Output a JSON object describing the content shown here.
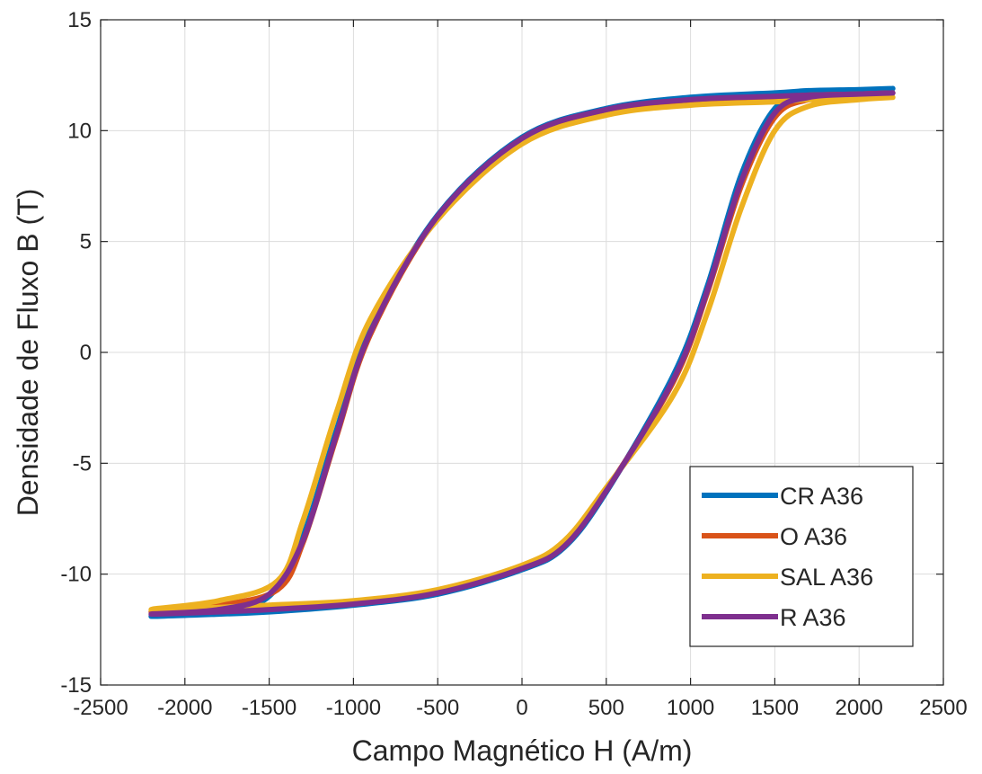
{
  "chart_data": {
    "type": "line",
    "title": "",
    "xlabel": "Campo Magnético H (A/m)",
    "ylabel": "Densidade de Fluxo B (T)",
    "xlim": [
      -2500,
      2500
    ],
    "ylim": [
      -15,
      15
    ],
    "x_ticks": [
      -2500,
      -2000,
      -1500,
      -1000,
      -500,
      0,
      500,
      1000,
      1500,
      2000,
      2500
    ],
    "y_ticks": [
      -15,
      -10,
      -5,
      0,
      5,
      10,
      15
    ],
    "x_tick_labels": [
      "-2500",
      "-2000",
      "-1500",
      "-1000",
      "-500",
      "0",
      "500",
      "1000",
      "1500",
      "2000",
      "2500"
    ],
    "y_tick_labels": [
      "-15",
      "-10",
      "-5",
      "0",
      "5",
      "10",
      "15"
    ],
    "grid": true,
    "legend_position": "bottom-right",
    "series": [
      {
        "name": "CR A36",
        "color": "#0072BD",
        "x": [
          2200,
          2000,
          1700,
          1500,
          1000,
          500,
          0,
          -500,
          -900,
          -1100,
          -1300,
          -1500,
          -1800,
          -2200,
          -1800,
          -1500,
          -1000,
          -500,
          0,
          250,
          500,
          900,
          1100,
          1300,
          1500,
          1700,
          2000,
          2200
        ],
        "y": [
          11.9,
          11.85,
          11.8,
          11.7,
          11.5,
          11.0,
          9.7,
          6.2,
          1.0,
          -3.5,
          -8.3,
          -11.0,
          -11.7,
          -11.9,
          -11.8,
          -11.7,
          -11.4,
          -10.9,
          -9.8,
          -8.8,
          -6.3,
          -1.0,
          3.0,
          8.0,
          11.0,
          11.6,
          11.8,
          11.9
        ]
      },
      {
        "name": "O A36",
        "color": "#D95319",
        "x": [
          2200,
          2000,
          1700,
          1500,
          1000,
          500,
          0,
          -500,
          -900,
          -1100,
          -1300,
          -1450,
          -1800,
          -2200,
          -1800,
          -1500,
          -1000,
          -500,
          0,
          250,
          500,
          900,
          1100,
          1300,
          1500,
          1700,
          2000,
          2200
        ],
        "y": [
          11.7,
          11.65,
          11.6,
          11.5,
          11.35,
          10.9,
          9.6,
          6.1,
          0.8,
          -3.8,
          -8.6,
          -10.7,
          -11.4,
          -11.7,
          -11.6,
          -11.5,
          -11.3,
          -10.8,
          -9.7,
          -8.7,
          -6.2,
          -1.3,
          2.7,
          7.5,
          10.6,
          11.4,
          11.6,
          11.7
        ]
      },
      {
        "name": "SAL A36",
        "color": "#EDB120",
        "x": [
          2200,
          2000,
          1700,
          1500,
          1000,
          500,
          0,
          -500,
          -900,
          -1100,
          -1300,
          -1450,
          -1800,
          -2200,
          -1800,
          -1500,
          -1000,
          -500,
          0,
          250,
          500,
          900,
          1100,
          1300,
          1500,
          1700,
          2000,
          2200
        ],
        "y": [
          11.5,
          11.45,
          11.4,
          11.3,
          11.15,
          10.7,
          9.4,
          6.0,
          1.5,
          -2.7,
          -7.6,
          -10.3,
          -11.2,
          -11.6,
          -11.5,
          -11.4,
          -11.2,
          -10.7,
          -9.6,
          -8.5,
          -6.1,
          -1.9,
          1.8,
          6.5,
          10.0,
          11.1,
          11.4,
          11.5
        ]
      },
      {
        "name": "R A36",
        "color": "#7E2F8E",
        "x": [
          2200,
          2000,
          1700,
          1500,
          1000,
          500,
          0,
          -500,
          -900,
          -1100,
          -1300,
          -1500,
          -1800,
          -2200,
          -1800,
          -1500,
          -1000,
          -500,
          0,
          250,
          500,
          900,
          1100,
          1300,
          1500,
          1700,
          2000,
          2200
        ],
        "y": [
          11.7,
          11.65,
          11.6,
          11.55,
          11.4,
          10.95,
          9.65,
          6.15,
          0.9,
          -3.7,
          -8.5,
          -10.9,
          -11.6,
          -11.8,
          -11.7,
          -11.6,
          -11.35,
          -10.85,
          -9.75,
          -8.75,
          -6.25,
          -1.2,
          2.8,
          7.7,
          10.8,
          11.5,
          11.65,
          11.7
        ]
      }
    ]
  }
}
